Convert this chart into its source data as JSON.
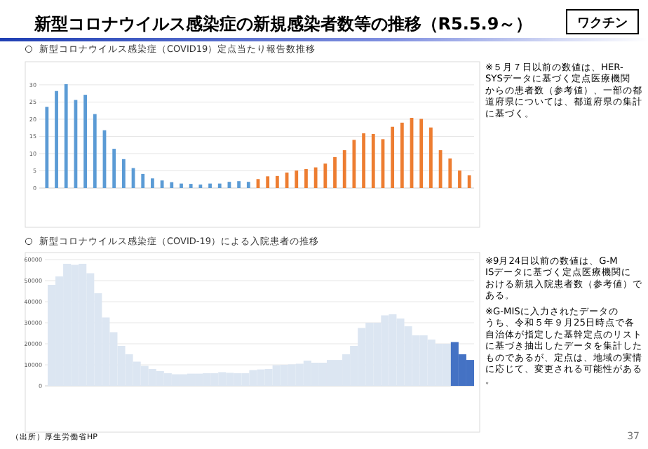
{
  "chart_data": [
    {
      "type": "bar",
      "title": "新型コロナウイルス感染症の新規感染者数等の推移（R5.5.9～）",
      "subtitle": "新型コロナウイルス感染症（COVID19）定点当たり報告数推移",
      "categories": [
        null,
        null,
        null,
        null,
        null,
        null,
        null,
        null,
        null,
        null,
        null,
        null,
        null,
        null,
        null,
        null,
        null,
        null,
        null,
        null,
        null,
        null,
        null,
        null,
        null,
        null,
        null,
        null,
        null,
        null,
        null,
        null,
        null,
        null,
        null,
        null,
        null,
        null,
        null,
        null,
        null,
        null,
        null,
        null,
        null
      ],
      "values": [
        23.6,
        28.2,
        30.2,
        25.6,
        27.1,
        21.5,
        16.8,
        11.4,
        8.4,
        5.8,
        4.1,
        2.8,
        2.2,
        1.7,
        1.3,
        1.2,
        1.0,
        1.3,
        1.3,
        1.8,
        2.0,
        1.8,
        2.6,
        3.4,
        3.5,
        4.5,
        5.1,
        5.5,
        6.0,
        7.1,
        9.0,
        11.0,
        14.0,
        15.9,
        15.7,
        14.2,
        17.8,
        19.0,
        20.4,
        20.1,
        17.6,
        11.0,
        8.6,
        5.1,
        3.7
      ],
      "colors": [
        "#5b9bd5",
        "#5b9bd5",
        "#5b9bd5",
        "#5b9bd5",
        "#5b9bd5",
        "#5b9bd5",
        "#5b9bd5",
        "#5b9bd5",
        "#5b9bd5",
        "#5b9bd5",
        "#5b9bd5",
        "#5b9bd5",
        "#5b9bd5",
        "#5b9bd5",
        "#5b9bd5",
        "#5b9bd5",
        "#5b9bd5",
        "#5b9bd5",
        "#5b9bd5",
        "#5b9bd5",
        "#5b9bd5",
        "#5b9bd5",
        "#ed7d31",
        "#ed7d31",
        "#ed7d31",
        "#ed7d31",
        "#ed7d31",
        "#ed7d31",
        "#ed7d31",
        "#ed7d31",
        "#ed7d31",
        "#ed7d31",
        "#ed7d31",
        "#ed7d31",
        "#ed7d31",
        "#ed7d31",
        "#ed7d31",
        "#ed7d31",
        "#ed7d31",
        "#ed7d31",
        "#ed7d31",
        "#ed7d31",
        "#ed7d31",
        "#ed7d31",
        "#ed7d31"
      ],
      "ylim": [
        0,
        31
      ],
      "yticks": [
        0,
        5,
        10,
        15,
        20,
        25,
        30
      ],
      "grid": "y",
      "annotations": [
        "ワクチン",
        "※５月７日以前の数値は、HER-SYSデータに基づく定点医療機関からの患者数（参考値）、一部の都道府県については、都道府県の集計に基づく。"
      ]
    },
    {
      "type": "bar",
      "title": "新型コロナウイルス感染症（COVID-19）による入院患者の推移",
      "categories": [
        null,
        null,
        null,
        null,
        null,
        null,
        null,
        null,
        null,
        null,
        null,
        null,
        null,
        null,
        null,
        null,
        null,
        null,
        null,
        null,
        null,
        null,
        null,
        null,
        null,
        null,
        null,
        null,
        null,
        null,
        null,
        null,
        null,
        null,
        null,
        null,
        null,
        null,
        null,
        null,
        null,
        null,
        null,
        null,
        null,
        null,
        null,
        null,
        null,
        null,
        null,
        null,
        null,
        null,
        null
      ],
      "values": [
        48000,
        52000,
        58000,
        57500,
        58000,
        53500,
        44000,
        32500,
        25500,
        19000,
        15000,
        11500,
        9500,
        8000,
        7000,
        6000,
        5500,
        5500,
        5800,
        5800,
        6000,
        6000,
        6500,
        6200,
        6000,
        6000,
        7500,
        7800,
        8000,
        9800,
        10000,
        10200,
        10500,
        12000,
        11000,
        11000,
        12300,
        12300,
        15000,
        19000,
        27500,
        30000,
        30000,
        33500,
        34000,
        32000,
        28300,
        24000,
        24000,
        22000,
        20000,
        20000,
        20800,
        15000,
        12300
      ],
      "colors": [
        "#dce6f2",
        "#dce6f2",
        "#dce6f2",
        "#dce6f2",
        "#dce6f2",
        "#dce6f2",
        "#dce6f2",
        "#dce6f2",
        "#dce6f2",
        "#dce6f2",
        "#dce6f2",
        "#dce6f2",
        "#dce6f2",
        "#dce6f2",
        "#dce6f2",
        "#dce6f2",
        "#dce6f2",
        "#dce6f2",
        "#dce6f2",
        "#dce6f2",
        "#dce6f2",
        "#dce6f2",
        "#dce6f2",
        "#dce6f2",
        "#dce6f2",
        "#dce6f2",
        "#dce6f2",
        "#dce6f2",
        "#dce6f2",
        "#dce6f2",
        "#dce6f2",
        "#dce6f2",
        "#dce6f2",
        "#dce6f2",
        "#dce6f2",
        "#dce6f2",
        "#dce6f2",
        "#dce6f2",
        "#dce6f2",
        "#dce6f2",
        "#dce6f2",
        "#dce6f2",
        "#dce6f2",
        "#dce6f2",
        "#dce6f2",
        "#dce6f2",
        "#dce6f2",
        "#dce6f2",
        "#dce6f2",
        "#dce6f2",
        "#dce6f2",
        "#dce6f2",
        "#4472c4",
        "#4472c4",
        "#4472c4"
      ],
      "ylim": [
        0,
        60000
      ],
      "yticks": [
        0,
        10000,
        20000,
        30000,
        40000,
        50000,
        60000
      ],
      "grid": "y",
      "annotations": [
        "※9月24日以前の数値は、G-MISデータに基づく定点医療機関における新規入院患者数（参考値）である。",
        "※G-MISに入力されたデータのうち、令和５年９月25日時点で各自治体が指定した基幹定点のリストに基づき抽出したデータを集計したものであるが、定点は、地域の実情に応じて、変更される可能性がある。",
        "（出所）厚生労働省HP",
        "37"
      ]
    }
  ]
}
